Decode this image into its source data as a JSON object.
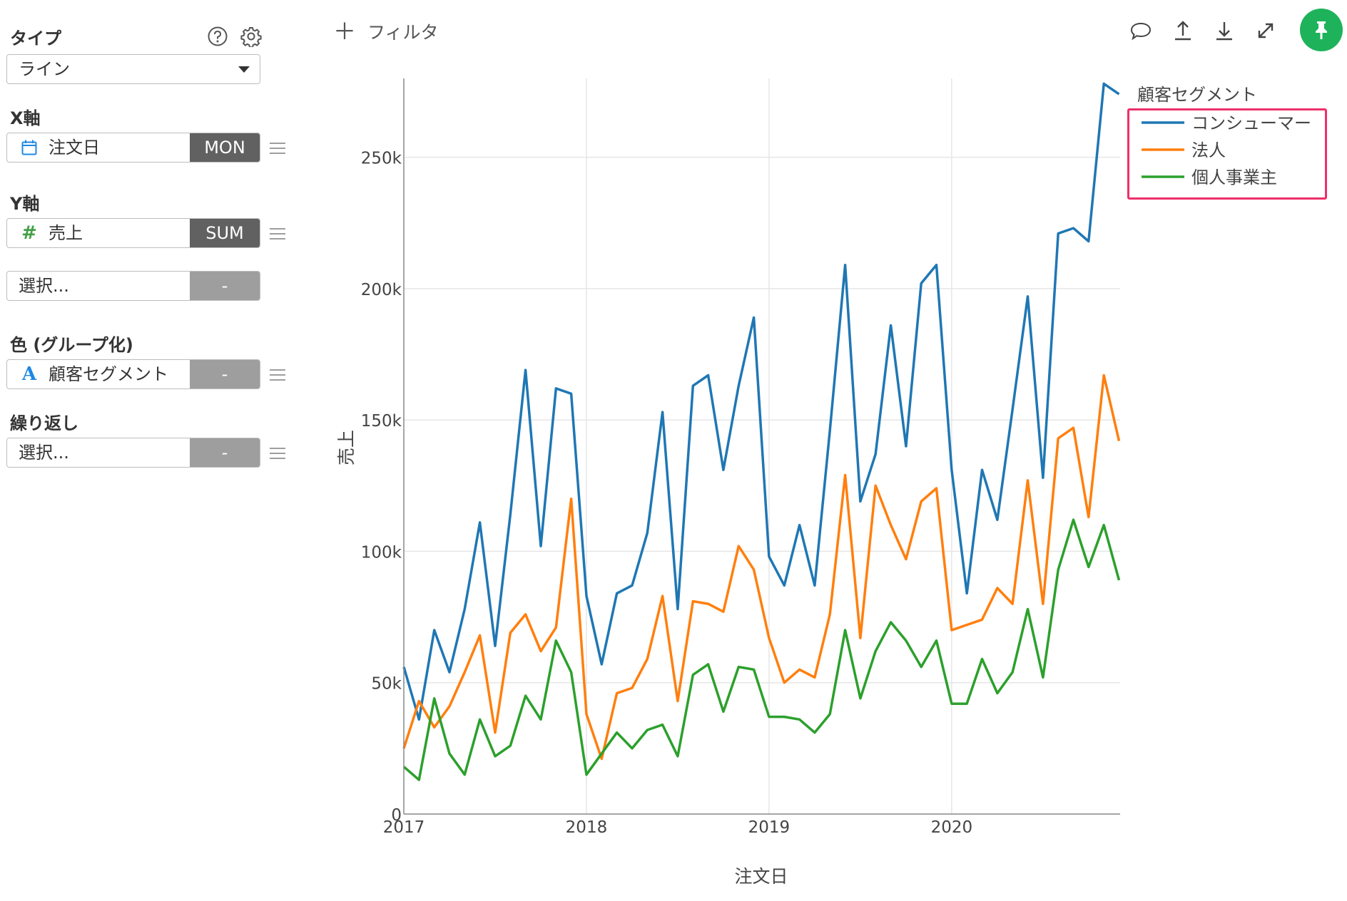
{
  "panel": {
    "type_label": "タイプ",
    "type_value": "ライン",
    "x_axis_label": "X軸",
    "x_field": "注文日",
    "x_agg": "MON",
    "y_axis_label": "Y軸",
    "y_field": "売上",
    "y_agg": "SUM",
    "y2_placeholder": "選択...",
    "y2_agg": "-",
    "color_label": "色 (グループ化)",
    "color_field": "顧客セグメント",
    "color_agg": "-",
    "repeat_label": "繰り返し",
    "repeat_placeholder": "選択...",
    "repeat_agg": "-",
    "icons": {
      "help": "help-circle-icon",
      "settings": "gear-icon",
      "calendar": "calendar-icon",
      "number": "hash-icon",
      "text": "text-type-icon",
      "menu": "hamburger-menu-icon",
      "dropdown": "caret-down-icon"
    }
  },
  "toolbar": {
    "filter_label": "フィルタ",
    "icons": [
      "comment-icon",
      "upload-icon",
      "download-icon",
      "expand-icon",
      "pin-icon"
    ],
    "pin_color": "#1eb35a"
  },
  "chart_data": {
    "type": "line",
    "xlabel": "注文日",
    "ylabel": "売上",
    "x_ticks": [
      "2017",
      "2018",
      "2019",
      "2020"
    ],
    "y_ticks": [
      "0",
      "50k",
      "100k",
      "150k",
      "200k",
      "250k"
    ],
    "ylim": [
      0,
      280000
    ],
    "x_start": "2017-01",
    "x_interval": "month",
    "grid": true,
    "legend_title": "顧客セグメント",
    "legend_position": "top-right",
    "highlight_color": "#ee2f6b",
    "series": [
      {
        "name": "コンシューマー",
        "color": "#1f77b4",
        "values": [
          56000,
          36000,
          70000,
          54000,
          78000,
          111000,
          64000,
          114000,
          169000,
          102000,
          162000,
          160000,
          83000,
          57000,
          84000,
          87000,
          107000,
          153000,
          78000,
          163000,
          167000,
          131000,
          163000,
          189000,
          98000,
          87000,
          110000,
          87000,
          146000,
          209000,
          119000,
          137000,
          186000,
          140000,
          202000,
          209000,
          131000,
          84000,
          131000,
          112000,
          154000,
          197000,
          128000,
          221000,
          223000,
          218000,
          278000,
          274000
        ]
      },
      {
        "name": "法人",
        "color": "#ff7f0e",
        "values": [
          25000,
          43000,
          33000,
          41000,
          54000,
          68000,
          31000,
          69000,
          76000,
          62000,
          71000,
          120000,
          38000,
          21000,
          46000,
          48000,
          59000,
          83000,
          43000,
          81000,
          80000,
          77000,
          102000,
          93000,
          67000,
          50000,
          55000,
          52000,
          76000,
          129000,
          67000,
          125000,
          110000,
          97000,
          119000,
          124000,
          70000,
          72000,
          74000,
          86000,
          80000,
          127000,
          80000,
          143000,
          147000,
          113000,
          167000,
          142000
        ]
      },
      {
        "name": "個人事業主",
        "color": "#2ca02c",
        "values": [
          18000,
          13000,
          44000,
          23000,
          15000,
          36000,
          22000,
          26000,
          45000,
          36000,
          66000,
          54000,
          15000,
          23000,
          31000,
          25000,
          32000,
          34000,
          22000,
          53000,
          57000,
          39000,
          56000,
          55000,
          37000,
          37000,
          36000,
          31000,
          38000,
          70000,
          44000,
          62000,
          73000,
          66000,
          56000,
          66000,
          42000,
          42000,
          59000,
          46000,
          54000,
          78000,
          52000,
          93000,
          112000,
          94000,
          110000,
          89000
        ]
      }
    ]
  }
}
